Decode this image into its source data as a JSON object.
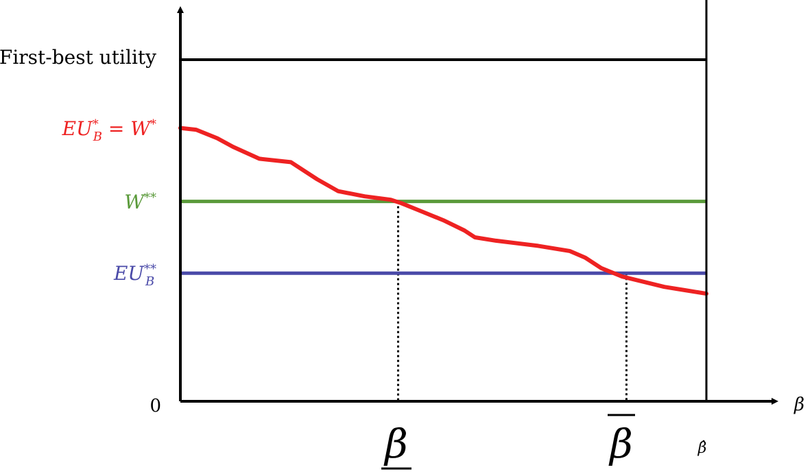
{
  "chart_data": {
    "type": "line",
    "title": "",
    "xlabel": "β",
    "ylabel": "",
    "origin_label": "0",
    "xlim": [
      0,
      1
    ],
    "ylim": [
      0,
      1
    ],
    "grid": false,
    "legend": "none",
    "horizontal_lines": [
      {
        "name": "first-best",
        "label": "First-best utility",
        "y": 1.0,
        "color": "#000000"
      },
      {
        "name": "w-double-star",
        "label": "W**",
        "y": 0.585,
        "color": "#5a9a3a"
      },
      {
        "name": "eub-double-star",
        "label": "EU_B**",
        "y": 0.375,
        "color": "#4a4aa8"
      }
    ],
    "curve": {
      "name": "eub-star",
      "label": "EU_B* = W*",
      "color": "#ee2222",
      "x": [
        0,
        0.03,
        0.07,
        0.1,
        0.15,
        0.21,
        0.26,
        0.3,
        0.35,
        0.4,
        0.42,
        0.46,
        0.5,
        0.54,
        0.56,
        0.6,
        0.68,
        0.74,
        0.77,
        0.8,
        0.84,
        0.88,
        0.92,
        0.96,
        1.0
      ],
      "y": [
        0.8,
        0.795,
        0.77,
        0.745,
        0.71,
        0.7,
        0.65,
        0.615,
        0.6,
        0.59,
        0.58,
        0.555,
        0.53,
        0.5,
        0.48,
        0.47,
        0.455,
        0.44,
        0.42,
        0.39,
        0.365,
        0.35,
        0.335,
        0.325,
        0.315
      ]
    },
    "markers": [
      {
        "name": "beta-underline",
        "label": "β",
        "decoration": "underline",
        "x": 0.414,
        "line_top": 0.585
      },
      {
        "name": "beta-bar",
        "label": "β",
        "decoration": "overline",
        "x": 0.848,
        "line_top": 0.375
      },
      {
        "name": "beta-hat",
        "label": "β̂",
        "decoration": "none",
        "x": 1.0
      }
    ]
  }
}
